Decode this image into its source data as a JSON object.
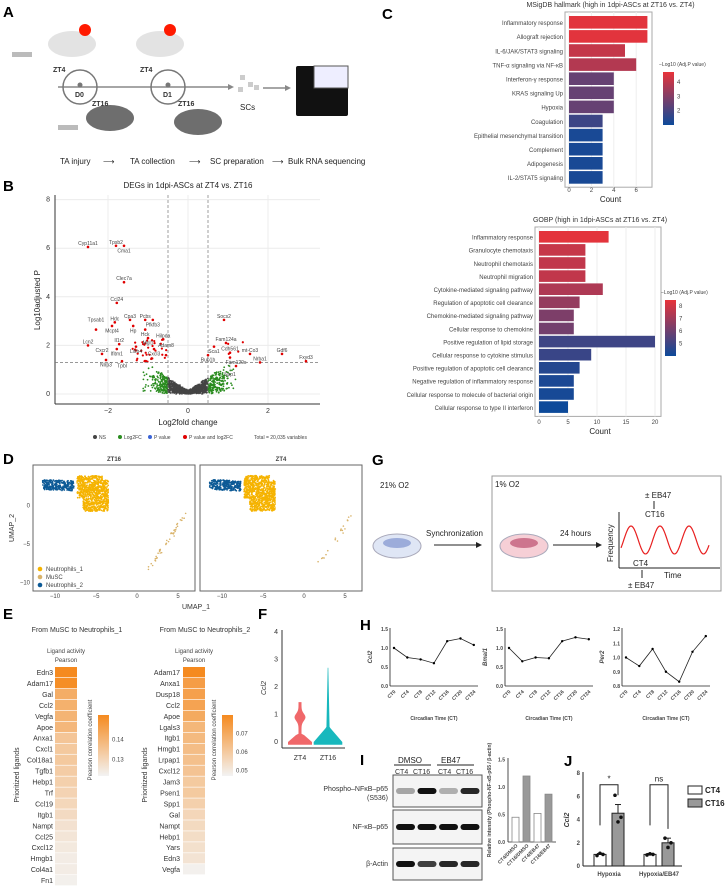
{
  "panels": {
    "a": "A",
    "b": "B",
    "c": "C",
    "d": "D",
    "e": "E",
    "f": "F",
    "g": "G",
    "h": "H",
    "i": "I",
    "j": "J"
  },
  "panel_a": {
    "zt4_1": "ZT4",
    "zt4_2": "ZT4",
    "zt16_1": "ZT16",
    "zt16_2": "ZT16",
    "d0": "D0",
    "d1": "D1",
    "scs": "SCs",
    "steps": [
      "TA injury",
      "TA collection",
      "SC preparation",
      "Bulk RNA sequencing"
    ],
    "colors": {
      "sun": "#ff1a00",
      "moon": "#f5a623"
    }
  },
  "chart_data": [
    {
      "id": "volcano",
      "type": "scatter",
      "title": "DEGs in 1dpi-ASCs at ZT4 vs. ZT16",
      "xlabel": "Log2fold change",
      "ylabel": "Log10adjusted P",
      "xlim": [
        -3.2,
        3.3
      ],
      "ylim": [
        -0.4,
        8.4
      ],
      "xticks": [
        "−2",
        "0",
        "2"
      ],
      "xtick_values": [
        -2,
        0,
        2
      ],
      "yticks": [
        "0",
        "2",
        "4",
        "6",
        "8"
      ],
      "ytick_values": [
        0,
        2,
        4,
        6,
        8
      ],
      "fc_cutoff": 0.5,
      "p_cutoff": 1.3,
      "legend": [
        "NS",
        "Log2FC",
        "P value",
        "P value and log2FC"
      ],
      "legend_colors": [
        "#444444",
        "#2a8c1f",
        "#3a63d6",
        "#e00000"
      ],
      "total": "Total = 20,035 variables",
      "labeled_genes": [
        {
          "g": "Cyp11a1",
          "x": -2.5,
          "y": 6.05
        },
        {
          "g": "Tpsb2",
          "x": -1.8,
          "y": 6.1
        },
        {
          "g": "Cma1",
          "x": -1.6,
          "y": 6.1
        },
        {
          "g": "Clec7a",
          "x": -1.6,
          "y": 4.6
        },
        {
          "g": "Ccl24",
          "x": -1.78,
          "y": 3.75
        },
        {
          "g": "Hdc",
          "x": -1.83,
          "y": 2.95
        },
        {
          "g": "Mcpt4",
          "x": -1.9,
          "y": 2.8
        },
        {
          "g": "Tpsab1",
          "x": -2.3,
          "y": 2.65
        },
        {
          "g": "Cpa3",
          "x": -1.45,
          "y": 3.05
        },
        {
          "g": "Pcbs",
          "x": -1.07,
          "y": 3.05
        },
        {
          "g": "Pfkfb3",
          "x": -0.88,
          "y": 3.05
        },
        {
          "g": "Hp",
          "x": -1.37,
          "y": 2.8
        },
        {
          "g": "Hck",
          "x": -1.07,
          "y": 2.65
        },
        {
          "g": "Hilpda",
          "x": -0.62,
          "y": 2.25
        },
        {
          "g": "Lcn2",
          "x": -2.5,
          "y": 2.0
        },
        {
          "g": "Il1r2",
          "x": -1.72,
          "y": 2.05
        },
        {
          "g": "Mgl1",
          "x": -1.0,
          "y": 2.3
        },
        {
          "g": "Cxcr2",
          "x": -2.15,
          "y": 1.65
        },
        {
          "g": "Ifitm1",
          "x": -1.78,
          "y": 1.85
        },
        {
          "g": "Nlrp3",
          "x": -2.05,
          "y": 1.4
        },
        {
          "g": "Tpbl",
          "x": -1.65,
          "y": 1.35
        },
        {
          "g": "Lilrb4",
          "x": -1.3,
          "y": 1.95
        },
        {
          "g": "Cxcl3",
          "x": -0.85,
          "y": 1.85
        },
        {
          "g": "Adam8",
          "x": -0.55,
          "y": 1.6
        },
        {
          "g": "Socs2",
          "x": 0.9,
          "y": 3.05
        },
        {
          "g": "Fam124a",
          "x": 0.95,
          "y": 2.1
        },
        {
          "g": "Sca1",
          "x": 0.65,
          "y": 1.95
        },
        {
          "g": "Bub1b",
          "x": 0.5,
          "y": 1.6
        },
        {
          "g": "Cdh561",
          "x": 1.05,
          "y": 1.7
        },
        {
          "g": "mt-Co3",
          "x": 1.55,
          "y": 1.65
        },
        {
          "g": "Gdf6",
          "x": 2.35,
          "y": 1.65
        },
        {
          "g": "Fxyd3",
          "x": 2.95,
          "y": 1.35
        },
        {
          "g": "Nrba1",
          "x": 1.8,
          "y": 1.3
        },
        {
          "g": "Fam120c",
          "x": 1.2,
          "y": 1.15
        },
        {
          "g": "Spp1",
          "x": 1.05,
          "y": 1.5
        }
      ]
    },
    {
      "id": "hallmark",
      "type": "bar",
      "title": "MSigDB hallmark (high in 1dpi-ASCs at ZT16 vs. ZT4)",
      "xlabel": "Count",
      "xlim": [
        0,
        7.5
      ],
      "xticks": [
        "0",
        "2",
        "4",
        "6"
      ],
      "xtick_values": [
        0,
        2,
        4,
        6
      ],
      "categories": [
        "Inflammatory response",
        "Allograft rejection",
        "IL-6/JAK/STAT3 signaling",
        "TNF-α signaling via NF-κB",
        "Interferon-γ response",
        "KRAS signaling Up",
        "Hypoxia",
        "Coagulation",
        "Epithelial mesenchymal transition",
        "Complement",
        "Adipogenesis",
        "IL-2/STAT5 signaling"
      ],
      "values": [
        7,
        7,
        5,
        6,
        4,
        4,
        4,
        3,
        3,
        3,
        3,
        3
      ],
      "neg_log10_adjp": [
        4.6,
        4.6,
        4.1,
        3.8,
        2.5,
        2.5,
        2.5,
        1.8,
        1.2,
        1.2,
        1.2,
        1.2
      ],
      "color_range": [
        1,
        4.7
      ],
      "colorbar_ticks": [
        "4",
        "3",
        "2"
      ],
      "colorbar_values": [
        4,
        3,
        2
      ],
      "legend_title": "−Log10 (Adj.P value)",
      "colors": {
        "low": "#0d4a9a",
        "high": "#e8333a"
      }
    },
    {
      "id": "gobp",
      "type": "bar",
      "title": "GOBP (high in 1dpi-ASCs at ZT16 vs. ZT4)",
      "xlabel": "Count",
      "xlim": [
        0,
        21
      ],
      "xticks": [
        "0",
        "5",
        "10",
        "15",
        "20"
      ],
      "xtick_values": [
        0,
        5,
        10,
        15,
        20
      ],
      "categories": [
        "Inflammatory response",
        "Granulocyte chemotaxis",
        "Neutrophil chemotaxis",
        "Neutrophil migration",
        "Cytokine-mediated signaling pathway",
        "Regulation of apoptotic cell clearance",
        "Chemokine-mediated signaling pathway",
        "Cellular response to chemokine",
        "Positive regulation of lipid storage",
        "Cellular response to cytokine stimulus",
        "Positive regulation of apoptotic cell clearance",
        "Negative regulation of inflammatory response",
        "Cellular response to molecule of bacterial origin",
        "Cellular response to type II interferon"
      ],
      "values": [
        12,
        8,
        8,
        8,
        11,
        7,
        6,
        6,
        20,
        9,
        7,
        6,
        6,
        5
      ],
      "neg_log10_adjp": [
        8.4,
        7.8,
        7.7,
        7.7,
        7.3,
        6.8,
        6.3,
        6.1,
        5.0,
        4.9,
        4.5,
        4.3,
        4.2,
        4.0
      ],
      "color_range": [
        4,
        8.5
      ],
      "colorbar_ticks": [
        "8",
        "7",
        "6",
        "5"
      ],
      "colorbar_values": [
        8,
        7,
        6,
        5
      ],
      "legend_title": "−Log10 (Adj.P value)",
      "colors": {
        "low": "#0d4a9a",
        "high": "#e8333a"
      }
    },
    {
      "id": "umap",
      "type": "scatter",
      "panels": [
        "ZT16",
        "ZT4"
      ],
      "xlabel": "UMAP_1",
      "ylabel": "UMAP_2",
      "xticks": [
        "−10",
        "−5",
        "0",
        "5"
      ],
      "xtick_values": [
        -10,
        -5,
        0,
        5
      ],
      "yticks": [
        "0",
        "−5",
        "−10"
      ],
      "ytick_values": [
        0,
        -5,
        -10
      ],
      "legend": [
        "Neutrophils_1",
        "MuSC",
        "Neutrophils_2"
      ],
      "colors": [
        "#f5b301",
        "#d9b36a",
        "#0d5a96"
      ]
    },
    {
      "id": "ligands1",
      "type": "heatmap",
      "title": "From MuSC to Neutrophils_1",
      "col_title": [
        "Ligand activity",
        "Pearson"
      ],
      "ylabel": "Prioritized ligands",
      "legend_title": "Pearson correlation coefficient",
      "ligands": [
        "Edn3",
        "Adam17",
        "Gal",
        "Ccl2",
        "Vegfa",
        "Apoe",
        "Anxa1",
        "Cxcl1",
        "Col18a1",
        "Tgfb1",
        "Hebp1",
        "Trf",
        "Ccl19",
        "Itgb1",
        "Nampt",
        "Ccl25",
        "Cxcl12",
        "Hmgb1",
        "Col4a1",
        "Fn1"
      ],
      "values": [
        0.152,
        0.151,
        0.142,
        0.141,
        0.14,
        0.139,
        0.135,
        0.134,
        0.134,
        0.133,
        0.132,
        0.131,
        0.13,
        0.129,
        0.127,
        0.126,
        0.125,
        0.124,
        0.124,
        0.123
      ],
      "range": [
        0.122,
        0.152
      ],
      "colorbar_ticks": [
        "0.14",
        "0.13"
      ],
      "colorbar_values": [
        0.14,
        0.13
      ],
      "colors": {
        "low": "#f3f3f3",
        "high": "#f58a1f"
      }
    },
    {
      "id": "ligands2",
      "type": "heatmap",
      "title": "From MuSC to Neutrophils_2",
      "col_title": [
        "Ligand activity",
        "Pearson"
      ],
      "ylabel": "Prioritized ligands",
      "legend_title": "Pearson correlation coefficient",
      "ligands": [
        "Adam17",
        "Anxa1",
        "Dusp18",
        "Ccl2",
        "Apoe",
        "Lgals3",
        "Itgb1",
        "Hmgb1",
        "Lrpap1",
        "Cxcl12",
        "Jam3",
        "Psen1",
        "Spp1",
        "Gal",
        "Nampt",
        "Hebp1",
        "Yars",
        "Edn3",
        "Vegfa"
      ],
      "values": [
        0.08,
        0.074,
        0.073,
        0.072,
        0.07,
        0.066,
        0.065,
        0.064,
        0.063,
        0.062,
        0.06,
        0.06,
        0.058,
        0.056,
        0.055,
        0.054,
        0.053,
        0.052,
        0.048
      ],
      "range": [
        0.047,
        0.08
      ],
      "colorbar_ticks": [
        "0.07",
        "0.06",
        "0.05"
      ],
      "colorbar_values": [
        0.07,
        0.06,
        0.05
      ],
      "colors": {
        "low": "#f3f3f3",
        "high": "#f58a1f"
      }
    },
    {
      "id": "violin",
      "type": "violin",
      "ylabel": "Ccl2",
      "categories": [
        "ZT4",
        "ZT16"
      ],
      "ylim": [
        -0.2,
        4
      ],
      "yticks": [
        "0",
        "1",
        "2",
        "3",
        "4"
      ],
      "ytick_values": [
        0,
        1,
        2,
        3,
        4
      ],
      "max": [
        1.5,
        2.7
      ],
      "colors": [
        "#f0686a",
        "#18b8bd"
      ]
    },
    {
      "id": "circadian",
      "type": "line",
      "x": [
        "CT0",
        "CT4",
        "CT8",
        "CT12",
        "CT16",
        "CT20",
        "CT24"
      ],
      "xlabel": "Circadian Time (CT)",
      "series": [
        {
          "name": "Ccl2",
          "values": [
            1.0,
            0.75,
            0.7,
            0.6,
            1.18,
            1.25,
            1.08
          ],
          "ylim": [
            0,
            1.5
          ],
          "yticks": [
            "0.0",
            "0.5",
            "1.0",
            "1.5"
          ],
          "ytick_values": [
            0,
            0.5,
            1,
            1.5
          ]
        },
        {
          "name": "Bmal1",
          "values": [
            1.0,
            0.65,
            0.75,
            0.73,
            1.18,
            1.28,
            1.23
          ],
          "ylim": [
            0,
            1.5
          ],
          "yticks": [
            "0.0",
            "0.5",
            "1.0",
            "1.5"
          ],
          "ytick_values": [
            0,
            0.5,
            1,
            1.5
          ]
        },
        {
          "name": "Per2",
          "values": [
            1.0,
            0.94,
            1.06,
            0.9,
            0.83,
            1.04,
            1.15
          ],
          "ylim": [
            0.8,
            1.2
          ],
          "yticks": [
            "0.8",
            "0.9",
            "1.0",
            "1.1",
            "1.2"
          ],
          "ytick_values": [
            0.8,
            0.9,
            1.0,
            1.1,
            1.2
          ]
        }
      ]
    },
    {
      "id": "western_quant",
      "type": "bar",
      "ylabel": "Relative intensity (Phospho-NF-κB-p65 / β-actin)",
      "categories": [
        "CT4/DMSO",
        "CT16/DMSO",
        "CT4/EB47",
        "CT16/EB47"
      ],
      "values": [
        0.45,
        1.2,
        0.52,
        0.87
      ],
      "ylim": [
        0,
        1.5
      ],
      "yticks": [
        "0.0",
        "0.5",
        "1.0",
        "1.5"
      ],
      "ytick_values": [
        0,
        0.5,
        1,
        1.5
      ],
      "fills": [
        "#ffffff",
        "#999999",
        "#ffffff",
        "#999999"
      ]
    },
    {
      "id": "qpcr",
      "type": "bar",
      "ylabel": "Ccl2",
      "categories": [
        "Hypoxia",
        "Hypoxia/EB47"
      ],
      "series": [
        {
          "name": "CT4",
          "values": [
            1.0,
            1.0
          ],
          "errors": [
            0.08,
            0.08
          ],
          "points": [
            [
              0.9,
              1.1,
              1.0
            ],
            [
              0.95,
              1.05,
              1.0
            ]
          ],
          "fill": "#ffffff"
        },
        {
          "name": "CT16",
          "values": [
            4.55,
            2.0
          ],
          "errors": [
            0.75,
            0.4
          ],
          "points": [
            [
              6.1,
              3.8,
              4.2
            ],
            [
              2.4,
              1.6,
              2.0
            ]
          ],
          "fill": "#999999"
        }
      ],
      "ylim": [
        0,
        8
      ],
      "yticks": [
        "0",
        "2",
        "4",
        "6",
        "8"
      ],
      "ytick_values": [
        0,
        2,
        4,
        6,
        8
      ],
      "significance": [
        "*",
        "ns"
      ]
    }
  ],
  "panel_g": {
    "normoxia": "21% O2",
    "hypoxia": "1% O2",
    "sync": "Synchronization",
    "hours": "24 hours",
    "eb47_top": "± EB47",
    "eb47_bottom": "± EB47",
    "ct16": "CT16",
    "ct4": "CT4",
    "ylab": "Frequency",
    "xlab": "Time",
    "wave_color": "#e82020"
  },
  "panel_i": {
    "groups": [
      "DMSO",
      "EB47"
    ],
    "lanes": [
      "CT4",
      "CT16",
      "CT4",
      "CT16"
    ],
    "blots": [
      "Phospho–NFκB–p65",
      "(S536)",
      "NF-κB–p65",
      "β-Actin"
    ]
  }
}
